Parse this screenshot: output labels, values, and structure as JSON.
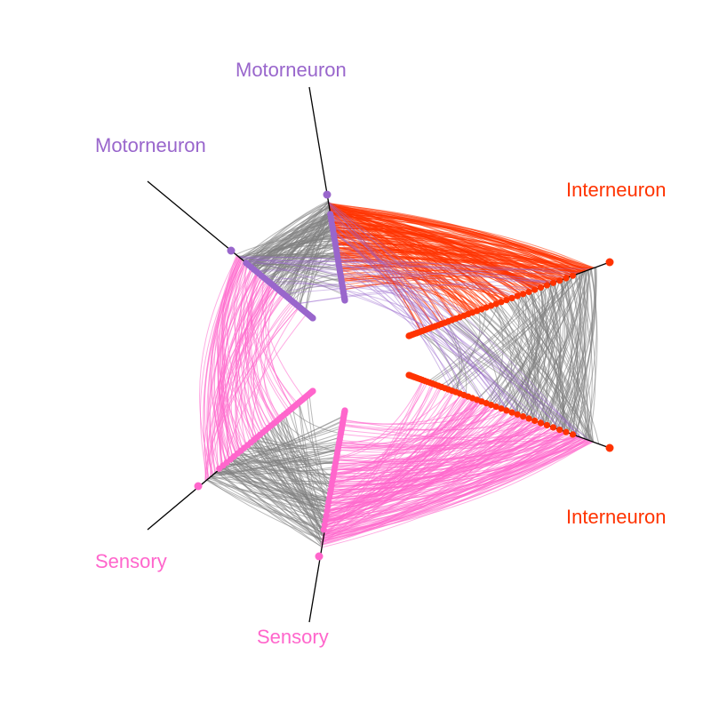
{
  "axis_labels": {
    "motor_top": "Motorneuron",
    "motor_left": "Motorneuron",
    "inter_top": "Interneuron",
    "inter_bottom": "Interneuron",
    "sensory_left": "Sensory",
    "sensory_bottom": "Sensory"
  },
  "colors": {
    "motorneuron": "#9966CC",
    "interneuron": "#FF3300",
    "sensory": "#FF66CC",
    "same_class_edge": "#808080",
    "axis_line": "#000000",
    "background": "#FFFFFF"
  }
}
